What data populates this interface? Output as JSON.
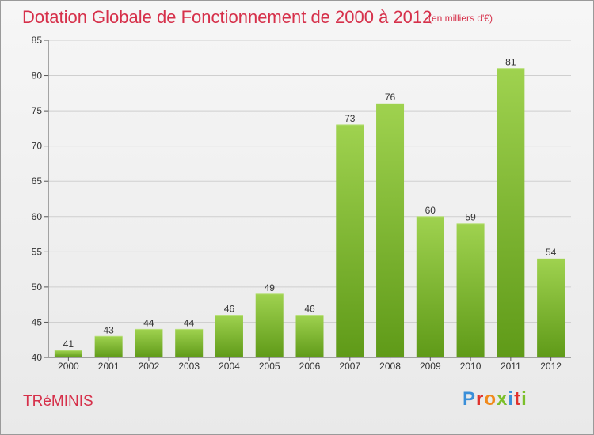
{
  "header": {
    "title": "Dotation Globale de Fonctionnement de 2000 à 2012",
    "subtitle": "(en milliers d'€)"
  },
  "footer": {
    "commune": "TRéMINIS",
    "logo_letters": [
      {
        "char": "P",
        "color": "#3a8fd9"
      },
      {
        "char": "r",
        "color": "#e0312c"
      },
      {
        "char": "o",
        "color": "#f08a1c"
      },
      {
        "char": "x",
        "color": "#7bbf2a"
      },
      {
        "char": "i",
        "color": "#3a8fd9"
      },
      {
        "char": "t",
        "color": "#e0312c"
      },
      {
        "char": "i",
        "color": "#7bbf2a"
      }
    ]
  },
  "chart_data": {
    "type": "bar",
    "categories": [
      "2000",
      "2001",
      "2002",
      "2003",
      "2004",
      "2005",
      "2006",
      "2007",
      "2008",
      "2009",
      "2010",
      "2011",
      "2012"
    ],
    "values": [
      41,
      43,
      44,
      44,
      46,
      49,
      46,
      73,
      76,
      60,
      59,
      81,
      54
    ],
    "ylim": [
      40,
      85
    ],
    "yticks": [
      40,
      45,
      50,
      55,
      60,
      65,
      70,
      75,
      80,
      85
    ],
    "grid": true,
    "colors": {
      "bar_light": "#9fd24f",
      "bar_dark": "#5f9a18",
      "text": "#333333",
      "grid": "#cfcfcf",
      "axis": "#555555"
    }
  }
}
